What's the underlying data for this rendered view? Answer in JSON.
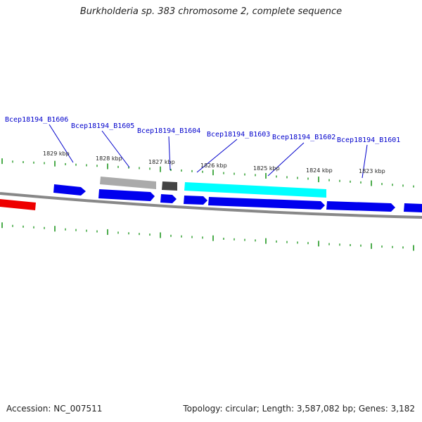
{
  "title": "Burkholderia sp. 383 chromosome 2, complete sequence",
  "footer": {
    "accession": "Accession: NC_007511",
    "topology": "Topology: circular; Length: 3,587,082 bp; Genes: 3,182"
  },
  "colors": {
    "backbone": "#888888",
    "cds": "#0000ee",
    "highlight_gene": "#00ffff",
    "gray_gene": "#aaaaaa",
    "dark_gene": "#444444",
    "red_gene": "#ee0000",
    "ticks": "#008800",
    "label_text": "#0000cc"
  },
  "gene_labels": [
    "Bcep18194_B1606",
    "Bcep18194_B1605",
    "Bcep18194_B1604",
    "Bcep18194_B1603",
    "Bcep18194_B1602",
    "Bcep18194_B1601"
  ],
  "scale_labels": [
    "1829 kbp",
    "1828 kbp",
    "1827 kbp",
    "1826 kbp",
    "1825 kbp",
    "1824 kbp",
    "1823 kbp"
  ]
}
